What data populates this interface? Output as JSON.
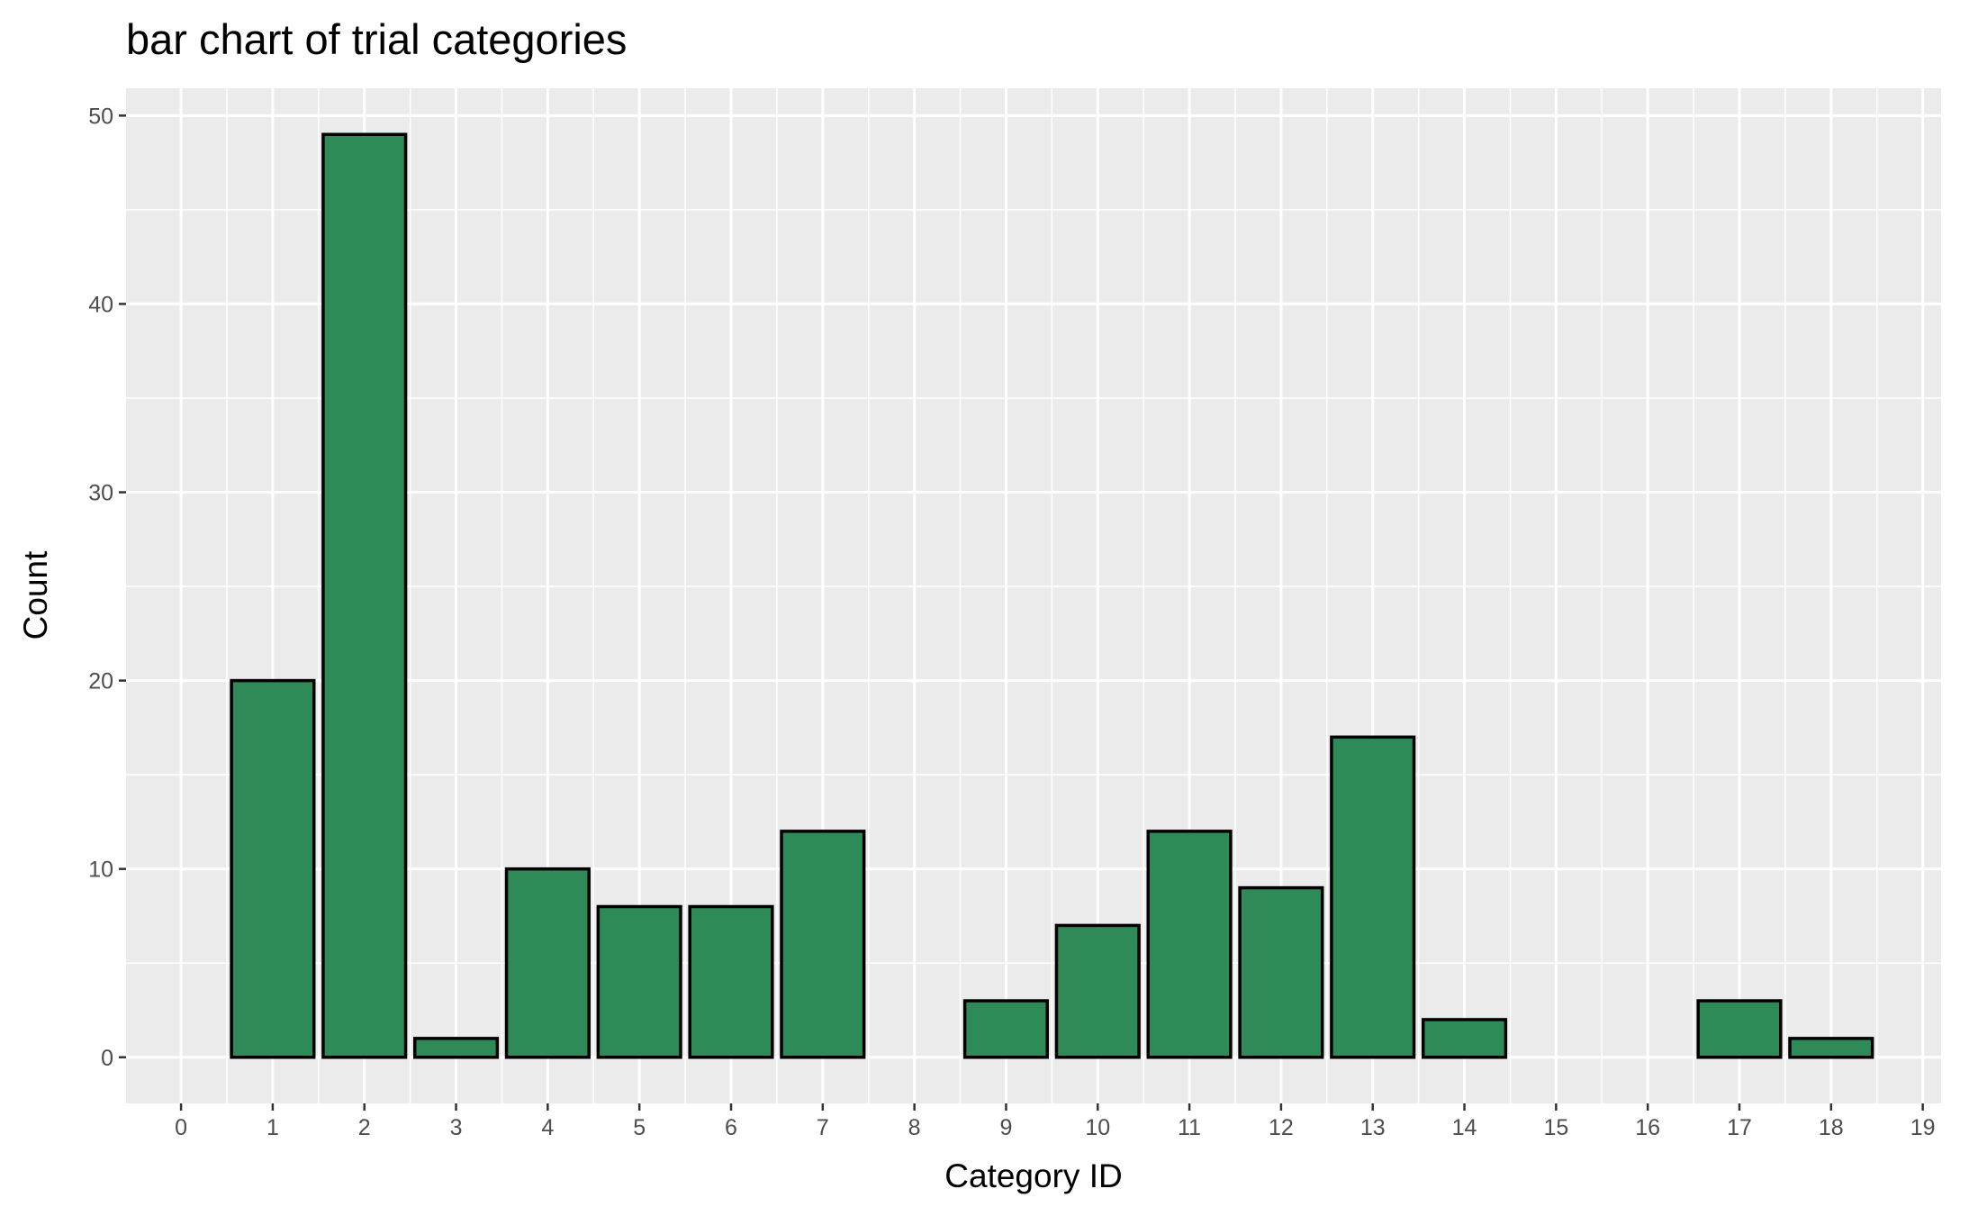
{
  "chart_data": {
    "type": "bar",
    "title": "bar chart of trial categories",
    "xlabel": "Category ID",
    "ylabel": "Count",
    "x": [
      1,
      2,
      3,
      4,
      5,
      6,
      7,
      9,
      10,
      11,
      12,
      13,
      14,
      17,
      18
    ],
    "values": [
      20,
      49,
      1,
      10,
      8,
      8,
      12,
      3,
      7,
      12,
      9,
      17,
      2,
      3,
      1
    ],
    "xlim": [
      -0.6,
      19.2
    ],
    "ylim": [
      -2.45,
      51.45
    ],
    "xticks": [
      "0",
      "1",
      "2",
      "3",
      "4",
      "5",
      "6",
      "7",
      "8",
      "9",
      "10",
      "11",
      "12",
      "13",
      "14",
      "15",
      "16",
      "17",
      "18",
      "19"
    ],
    "yticks": [
      "0",
      "10",
      "20",
      "30",
      "40",
      "50"
    ],
    "grid": true,
    "colors": {
      "bar_fill": "#2E8B57",
      "bar_outline": "#000000",
      "panel": "#EBEBEB",
      "grid": "#FFFFFF"
    }
  }
}
